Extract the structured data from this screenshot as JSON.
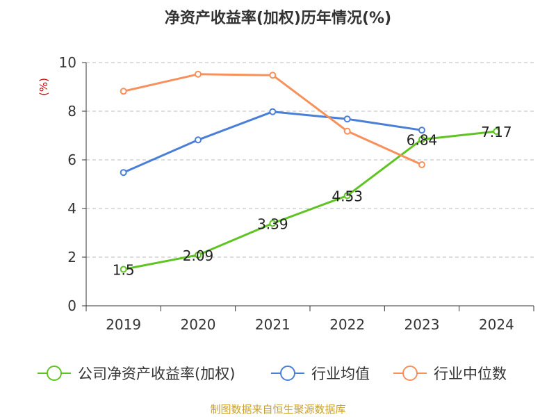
{
  "title": "净资产收益率(加权)历年情况(%)",
  "source": "制图数据来自恒生聚源数据库",
  "colors": {
    "company": "#5fc323",
    "industry_avg": "#4a7fd8",
    "industry_median": "#f7905a",
    "axis": "#333333",
    "grid": "#bbbbbb",
    "unit": "#cc0000"
  },
  "chart_data": {
    "type": "line",
    "title": "净资产收益率(加权)历年情况(%)",
    "ylabel": "(%)",
    "xlabel": "",
    "categories": [
      "2019",
      "2020",
      "2021",
      "2022",
      "2023",
      "2024"
    ],
    "ylim": [
      0,
      10
    ],
    "yticks": [
      0,
      2,
      4,
      6,
      8,
      10
    ],
    "grid": true,
    "legend_position": "bottom",
    "series": [
      {
        "name": "公司净资产收益率(加权)",
        "color": "#5fc323",
        "values": [
          1.5,
          2.09,
          3.39,
          4.53,
          6.84,
          7.17
        ],
        "labels": [
          "1.5",
          "2.09",
          "3.39",
          "4.53",
          "6.84",
          "7.17"
        ],
        "show_labels": true
      },
      {
        "name": "行业均值",
        "color": "#4a7fd8",
        "values": [
          5.48,
          6.82,
          7.98,
          7.68,
          7.22,
          null
        ],
        "show_labels": false
      },
      {
        "name": "行业中位数",
        "color": "#f7905a",
        "values": [
          8.82,
          9.52,
          9.48,
          7.18,
          5.8,
          null
        ],
        "show_labels": false
      }
    ]
  }
}
